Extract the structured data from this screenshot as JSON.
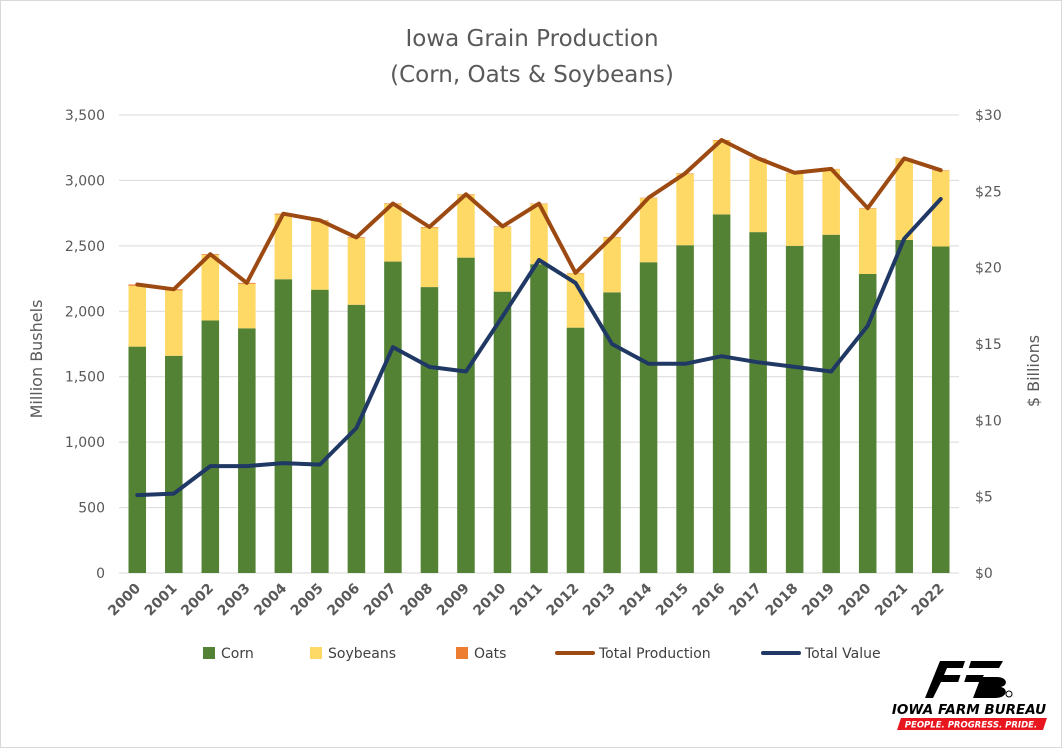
{
  "chart_data": {
    "type": "bar",
    "title": [
      "Iowa Grain Production",
      "(Corn, Oats & Soybeans)"
    ],
    "ylabel": "Million Bushels",
    "y2label": "$ Billions",
    "ylim": [
      0,
      3500
    ],
    "y2lim": [
      0,
      30
    ],
    "yticks": [
      "0",
      "500",
      "1,000",
      "1,500",
      "2,000",
      "2,500",
      "3,000",
      "3,500"
    ],
    "y2ticks": [
      "$0",
      "$5",
      "$10",
      "$15",
      "$20",
      "$25",
      "$30"
    ],
    "grid": true,
    "legend_position": "bottom",
    "stacked": true,
    "categories": [
      "2000",
      "2001",
      "2002",
      "2003",
      "2004",
      "2005",
      "2006",
      "2007",
      "2008",
      "2009",
      "2010",
      "2011",
      "2012",
      "2013",
      "2014",
      "2015",
      "2016",
      "2017",
      "2018",
      "2019",
      "2020",
      "2021",
      "2022"
    ],
    "series": [
      {
        "name": "Corn",
        "type": "bar",
        "axis": "left",
        "color": "#548235",
        "values": [
          1730,
          1660,
          1930,
          1870,
          2245,
          2165,
          2050,
          2380,
          2185,
          2410,
          2150,
          2360,
          1875,
          2145,
          2375,
          2505,
          2740,
          2605,
          2500,
          2585,
          2285,
          2545,
          2495
        ]
      },
      {
        "name": "Soybeans",
        "type": "bar",
        "axis": "left",
        "color": "#ffd966",
        "values": [
          465,
          500,
          500,
          340,
          495,
          525,
          510,
          440,
          455,
          480,
          495,
          460,
          415,
          420,
          490,
          545,
          565,
          560,
          555,
          500,
          500,
          620,
          580
        ]
      },
      {
        "name": "Oats",
        "type": "bar",
        "axis": "left",
        "color": "#ed7d31",
        "values": [
          10,
          8,
          6,
          7,
          6,
          5,
          5,
          4,
          4,
          4,
          4,
          3,
          3,
          3,
          3,
          4,
          4,
          3,
          3,
          3,
          3,
          3,
          3
        ]
      },
      {
        "name": "Total Production",
        "type": "line",
        "axis": "left",
        "color": "#9c4a12",
        "values": [
          2205,
          2168,
          2436,
          2217,
          2746,
          2695,
          2565,
          2824,
          2644,
          2894,
          2649,
          2823,
          2293,
          2568,
          2868,
          3054,
          3309,
          3168,
          3058,
          3088,
          2788,
          3168,
          3078
        ]
      },
      {
        "name": "Total Value",
        "type": "line",
        "axis": "right",
        "color": "#203864",
        "values": [
          5.1,
          5.2,
          7.0,
          7.0,
          7.2,
          7.1,
          9.5,
          14.8,
          13.5,
          13.2,
          16.8,
          20.5,
          19.0,
          15.0,
          13.7,
          13.7,
          14.2,
          13.8,
          13.5,
          13.2,
          16.2,
          21.9,
          24.5
        ]
      }
    ]
  },
  "logo": {
    "line1": "IOWA FARM BUREAU",
    "line2": "PEOPLE. PROGRESS. PRIDE.",
    "colors": {
      "mark": "#000000",
      "band": "#e8171f",
      "band_text": "#ffffff"
    }
  }
}
